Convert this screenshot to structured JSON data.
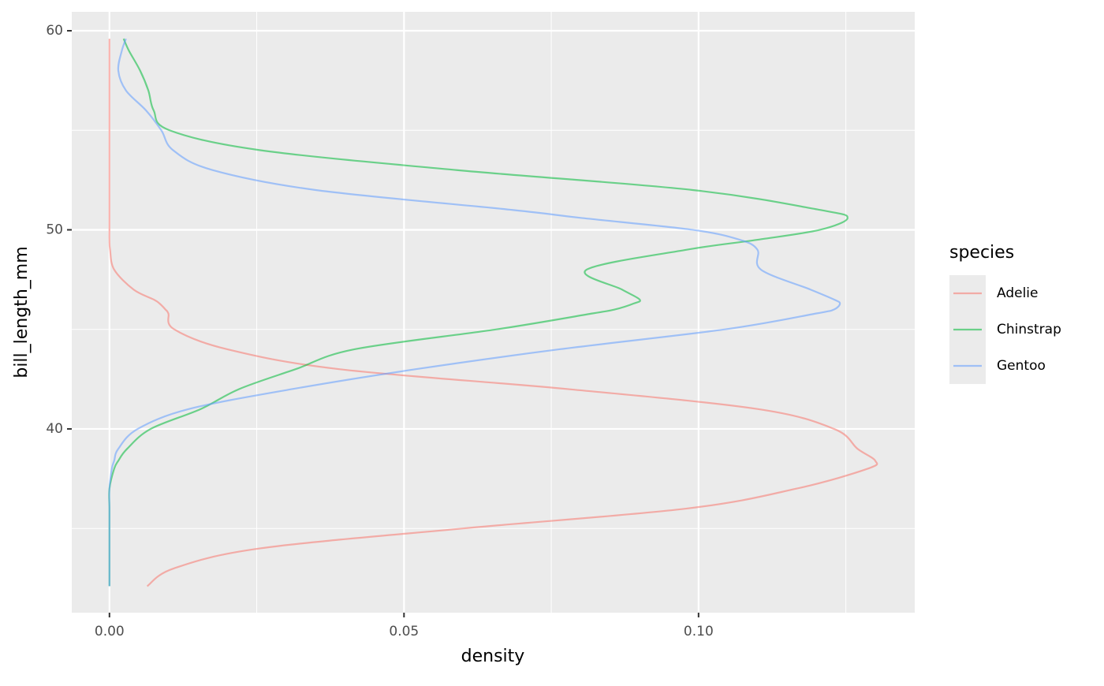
{
  "chart_data": {
    "type": "line",
    "orientation": "horizontal",
    "x_label": "density",
    "y_label": "bill_length_mm",
    "legend_title": "species",
    "legend_position": "right",
    "grid": true,
    "alpha": 0.55,
    "xlim": [
      -0.0064,
      0.1367
    ],
    "ylim": [
      30.77,
      60.95
    ],
    "xticks": [
      {
        "value": 0,
        "label": "0.00"
      },
      {
        "value": 0.05,
        "label": "0.05"
      },
      {
        "value": 0.1,
        "label": "0.10"
      }
    ],
    "yticks": [
      40,
      50,
      60
    ],
    "minor_xticks": [
      0.025,
      0.075,
      0.125
    ],
    "minor_yticks": [
      35,
      45,
      55
    ],
    "y": [
      32.1,
      33,
      34,
      35,
      36,
      37,
      38,
      38.4,
      39,
      40,
      41,
      42,
      43,
      44,
      45,
      45.8,
      46,
      46.3,
      46.5,
      47,
      48,
      49,
      49.5,
      50,
      50.6,
      51,
      52,
      53,
      54,
      55,
      56,
      57,
      58,
      59,
      59.6
    ],
    "series": [
      {
        "name": "Adelie",
        "color": "#F8766D",
        "values": [
          0.0064,
          0.011,
          0.0256,
          0.06,
          0.098,
          0.1166,
          0.1287,
          0.13,
          0.127,
          0.123,
          0.11,
          0.0778,
          0.039,
          0.02,
          0.011,
          0.01,
          0.0095,
          0.0085,
          0.0075,
          0.0041,
          0.0008,
          0.0001,
          0,
          0,
          0,
          0,
          0,
          0,
          0,
          0,
          0,
          0,
          0,
          0,
          0
        ]
      },
      {
        "name": "Chinstrap",
        "color": "#00BA38",
        "values": [
          0,
          0,
          0,
          0,
          0,
          0,
          0.0008,
          0.0015,
          0.003,
          0.007,
          0.0155,
          0.022,
          0.0316,
          0.0416,
          0.0657,
          0.082,
          0.0858,
          0.089,
          0.09,
          0.087,
          0.081,
          0.098,
          0.11,
          0.1206,
          0.1253,
          0.1206,
          0.099,
          0.059,
          0.0256,
          0.0102,
          0.0075,
          0.0066,
          0.0052,
          0.0033,
          0.0024
        ]
      },
      {
        "name": "Gentoo",
        "color": "#619CFF",
        "values": [
          0,
          0,
          0,
          0,
          0,
          0,
          0.0004,
          0.0008,
          0.0015,
          0.0048,
          0.0135,
          0.031,
          0.052,
          0.0764,
          0.1045,
          0.12,
          0.123,
          0.124,
          0.123,
          0.119,
          0.1106,
          0.11,
          0.107,
          0.099,
          0.08,
          0.0684,
          0.035,
          0.0175,
          0.0108,
          0.0088,
          0.0062,
          0.0028,
          0.0015,
          0.0021,
          0.0028
        ]
      }
    ]
  }
}
